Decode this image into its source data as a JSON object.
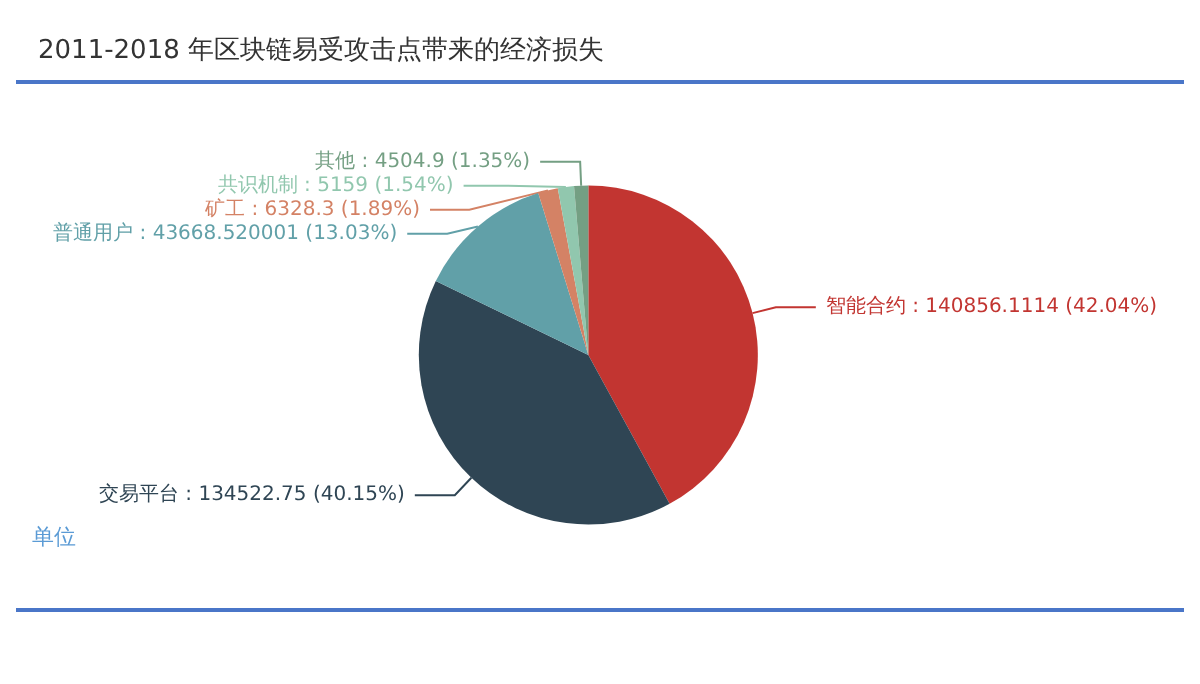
{
  "chart_data": {
    "type": "pie",
    "title": "2011-2018 年区块链易受攻击点带来的经济损失",
    "categories": [
      "智能合约",
      "交易平台",
      "普通用户",
      "矿工",
      "共识机制",
      "其他"
    ],
    "values": [
      140856.1114,
      134522.75,
      43668.520001,
      6328.3,
      5159,
      4504.9
    ],
    "value_labels": [
      "140856.1114 (42.04%)",
      "134522.75 (40.15%)",
      "43668.520001 (13.03%)",
      "6328.3 (1.89%)",
      "5159 (1.54%)",
      "4504.9 (1.35%)"
    ],
    "colors": [
      "#c23531",
      "#2f4554",
      "#61a0a8",
      "#d48265",
      "#91c7ae",
      "#749f83"
    ],
    "annotations": [
      "单位"
    ],
    "legend": false
  }
}
